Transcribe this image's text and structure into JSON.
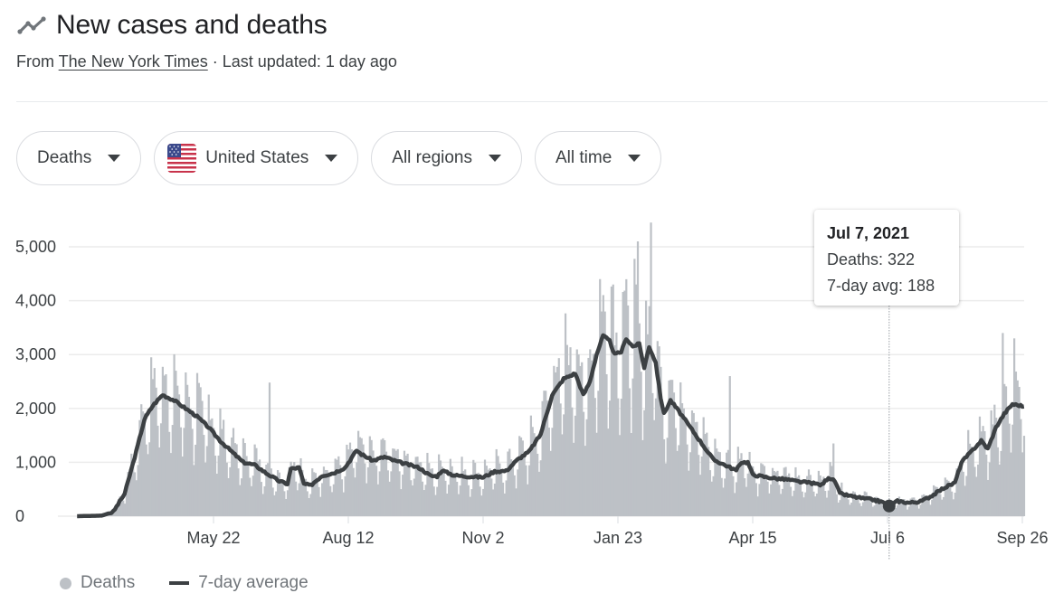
{
  "header": {
    "title": "New cases and deaths",
    "icon": "trending-line-icon",
    "source_prefix": "From ",
    "source_link": "The New York Times",
    "source_suffix": " · Last updated: 1 day ago"
  },
  "filters": [
    {
      "label": "Deaths"
    },
    {
      "label": "United States",
      "icon": "us-flag-icon"
    },
    {
      "label": "All regions"
    },
    {
      "label": "All time"
    }
  ],
  "tooltip": {
    "date": "Jul 7, 2021",
    "deaths": "Deaths: 322",
    "avg": "7-day avg: 188"
  },
  "legend": {
    "deaths": "Deaths",
    "avg": "7-day average"
  },
  "colors": {
    "bars": "#bdc1c6",
    "line": "#3c4043",
    "grid": "#ececec",
    "text": "#3c4043"
  },
  "chart_data": {
    "type": "bar",
    "title": "New cases and deaths",
    "xlabel": "",
    "ylabel": "",
    "ylim": [
      0,
      5000
    ],
    "yticks": [
      0,
      1000,
      2000,
      3000,
      4000,
      5000
    ],
    "ytick_labels": [
      "0",
      "1,000",
      "2,000",
      "3,000",
      "4,000",
      "5,000"
    ],
    "x_start": "2020-02-29",
    "x_end": "2021-09-27",
    "xticks": [
      "2020-05-22",
      "2020-08-12",
      "2020-11-02",
      "2021-01-23",
      "2021-04-15",
      "2021-07-06",
      "2021-09-26"
    ],
    "xtick_labels": [
      "May 22",
      "Aug 12",
      "Nov 2",
      "Jan 23",
      "Apr 15",
      "Jul 6",
      "Sep 26"
    ],
    "grid": true,
    "legend_position": "bottom-left",
    "highlight": {
      "date": "2021-07-07",
      "deaths": 322,
      "avg": 188
    },
    "series": [
      {
        "name": "7-day average",
        "type": "line",
        "points": [
          [
            "2020-02-29",
            0
          ],
          [
            "2020-03-15",
            10
          ],
          [
            "2020-03-22",
            80
          ],
          [
            "2020-03-29",
            420
          ],
          [
            "2020-04-05",
            1200
          ],
          [
            "2020-04-10",
            1800
          ],
          [
            "2020-04-15",
            2050
          ],
          [
            "2020-04-21",
            2250
          ],
          [
            "2020-04-28",
            2150
          ],
          [
            "2020-05-05",
            2000
          ],
          [
            "2020-05-12",
            1850
          ],
          [
            "2020-05-19",
            1650
          ],
          [
            "2020-05-26",
            1400
          ],
          [
            "2020-06-02",
            1200
          ],
          [
            "2020-06-09",
            1000
          ],
          [
            "2020-06-16",
            950
          ],
          [
            "2020-06-23",
            800
          ],
          [
            "2020-07-01",
            650
          ],
          [
            "2020-07-06",
            600
          ],
          [
            "2020-07-08",
            880
          ],
          [
            "2020-07-13",
            900
          ],
          [
            "2020-07-16",
            600
          ],
          [
            "2020-07-20",
            570
          ],
          [
            "2020-07-27",
            750
          ],
          [
            "2020-08-03",
            800
          ],
          [
            "2020-08-10",
            900
          ],
          [
            "2020-08-17",
            1220
          ],
          [
            "2020-08-20",
            1150
          ],
          [
            "2020-08-27",
            1030
          ],
          [
            "2020-09-03",
            1100
          ],
          [
            "2020-09-10",
            1020
          ],
          [
            "2020-09-17",
            960
          ],
          [
            "2020-09-24",
            900
          ],
          [
            "2020-10-01",
            750
          ],
          [
            "2020-10-05",
            740
          ],
          [
            "2020-10-08",
            850
          ],
          [
            "2020-10-15",
            760
          ],
          [
            "2020-10-22",
            740
          ],
          [
            "2020-10-29",
            730
          ],
          [
            "2020-11-02",
            720
          ],
          [
            "2020-11-09",
            830
          ],
          [
            "2020-11-16",
            840
          ],
          [
            "2020-11-23",
            1050
          ],
          [
            "2020-11-30",
            1200
          ],
          [
            "2020-12-07",
            1520
          ],
          [
            "2020-12-14",
            2250
          ],
          [
            "2020-12-21",
            2550
          ],
          [
            "2020-12-28",
            2650
          ],
          [
            "2021-01-02",
            2250
          ],
          [
            "2021-01-06",
            2500
          ],
          [
            "2021-01-10",
            3000
          ],
          [
            "2021-01-14",
            3350
          ],
          [
            "2021-01-18",
            3250
          ],
          [
            "2021-01-21",
            3000
          ],
          [
            "2021-01-25",
            3050
          ],
          [
            "2021-01-28",
            3300
          ],
          [
            "2021-02-01",
            3150
          ],
          [
            "2021-02-05",
            3200
          ],
          [
            "2021-02-08",
            2750
          ],
          [
            "2021-02-11",
            3150
          ],
          [
            "2021-02-15",
            2850
          ],
          [
            "2021-02-18",
            2200
          ],
          [
            "2021-02-20",
            1900
          ],
          [
            "2021-02-24",
            2150
          ],
          [
            "2021-03-01",
            1950
          ],
          [
            "2021-03-08",
            1650
          ],
          [
            "2021-03-15",
            1350
          ],
          [
            "2021-03-22",
            1050
          ],
          [
            "2021-03-29",
            950
          ],
          [
            "2021-04-05",
            850
          ],
          [
            "2021-04-08",
            1000
          ],
          [
            "2021-04-12",
            1000
          ],
          [
            "2021-04-15",
            770
          ],
          [
            "2021-04-22",
            730
          ],
          [
            "2021-04-29",
            700
          ],
          [
            "2021-05-06",
            680
          ],
          [
            "2021-05-13",
            640
          ],
          [
            "2021-05-20",
            620
          ],
          [
            "2021-05-27",
            580
          ],
          [
            "2021-05-31",
            720
          ],
          [
            "2021-06-04",
            650
          ],
          [
            "2021-06-07",
            420
          ],
          [
            "2021-06-14",
            370
          ],
          [
            "2021-06-21",
            330
          ],
          [
            "2021-06-28",
            300
          ],
          [
            "2021-07-03",
            260
          ],
          [
            "2021-07-07",
            188
          ],
          [
            "2021-07-12",
            280
          ],
          [
            "2021-07-19",
            250
          ],
          [
            "2021-07-26",
            270
          ],
          [
            "2021-08-02",
            380
          ],
          [
            "2021-08-09",
            520
          ],
          [
            "2021-08-16",
            620
          ],
          [
            "2021-08-20",
            1000
          ],
          [
            "2021-08-26",
            1200
          ],
          [
            "2021-09-01",
            1400
          ],
          [
            "2021-09-05",
            1250
          ],
          [
            "2021-09-10",
            1650
          ],
          [
            "2021-09-15",
            1900
          ],
          [
            "2021-09-20",
            2080
          ],
          [
            "2021-09-27",
            2040
          ]
        ]
      },
      {
        "name": "Deaths",
        "type": "bar",
        "weekly_pattern": [
          0.55,
          0.75,
          1.35,
          1.25,
          1.2,
          1.1,
          0.8
        ],
        "spikes": [
          [
            "2020-04-16",
            2750
          ],
          [
            "2020-04-29",
            2700
          ],
          [
            "2020-06-25",
            2480
          ],
          [
            "2021-01-12",
            4400
          ],
          [
            "2021-01-20",
            4300
          ],
          [
            "2021-02-04",
            5100
          ],
          [
            "2021-02-12",
            5450
          ],
          [
            "2021-04-01",
            2600
          ],
          [
            "2021-06-03",
            1350
          ],
          [
            "2021-09-14",
            3400
          ],
          [
            "2021-09-21",
            3300
          ]
        ]
      }
    ]
  }
}
